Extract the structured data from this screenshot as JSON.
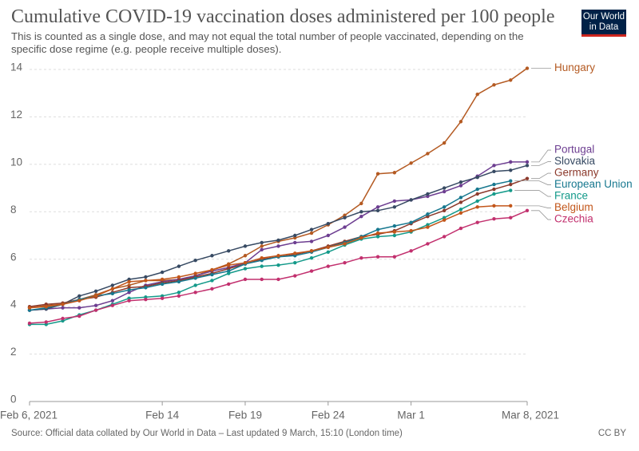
{
  "chart_data": {
    "type": "line",
    "title": "Cumulative COVID-19 vaccination doses administered per 100 people",
    "subtitle": "This is counted as a single dose, and may not equal the total number of people vaccinated, depending on the specific dose regime (e.g. people receive multiple doses).",
    "logo": "Our World in Data",
    "source": "Source: Official data collated by Our World in Data – Last updated 9 March, 15:10 (London time)",
    "license": "CC BY",
    "x": [
      "2021-02-06",
      "2021-02-07",
      "2021-02-08",
      "2021-02-09",
      "2021-02-10",
      "2021-02-11",
      "2021-02-12",
      "2021-02-13",
      "2021-02-14",
      "2021-02-15",
      "2021-02-16",
      "2021-02-17",
      "2021-02-18",
      "2021-02-19",
      "2021-02-20",
      "2021-02-21",
      "2021-02-22",
      "2021-02-23",
      "2021-02-24",
      "2021-02-25",
      "2021-02-26",
      "2021-02-27",
      "2021-02-28",
      "2021-03-01",
      "2021-03-02",
      "2021-03-03",
      "2021-03-04",
      "2021-03-05",
      "2021-03-06",
      "2021-03-07",
      "2021-03-08"
    ],
    "xlim": [
      "2021-02-06",
      "2021-03-08"
    ],
    "xticks": [
      {
        "value": "2021-02-06",
        "label": "Feb 6, 2021"
      },
      {
        "value": "2021-02-14",
        "label": "Feb 14"
      },
      {
        "value": "2021-02-19",
        "label": "Feb 19"
      },
      {
        "value": "2021-02-24",
        "label": "Feb 24"
      },
      {
        "value": "2021-03-01",
        "label": "Mar 1"
      },
      {
        "value": "2021-03-08",
        "label": "Mar 8, 2021"
      }
    ],
    "ylim": [
      0,
      14
    ],
    "yticks": [
      0,
      2,
      4,
      6,
      8,
      10,
      12,
      14
    ],
    "grid": true,
    "series": [
      {
        "name": "Hungary",
        "color": "#b45a22",
        "values": [
          3.95,
          4.05,
          4.1,
          4.3,
          4.5,
          4.75,
          4.9,
          5.1,
          5.1,
          5.15,
          5.3,
          5.55,
          5.8,
          6.15,
          6.55,
          6.75,
          6.9,
          7.1,
          7.45,
          7.85,
          8.35,
          9.6,
          9.65,
          10.05,
          10.45,
          10.9,
          11.8,
          12.95,
          13.35,
          13.55,
          14.05
        ]
      },
      {
        "name": "Portugal",
        "color": "#6d3e91",
        "values": [
          3.85,
          3.9,
          3.95,
          3.95,
          4.05,
          4.25,
          4.6,
          4.9,
          5.05,
          5.15,
          5.3,
          5.5,
          5.65,
          5.85,
          6.4,
          6.55,
          6.7,
          6.75,
          7.0,
          7.35,
          7.8,
          8.2,
          8.45,
          8.5,
          8.65,
          8.85,
          9.1,
          9.5,
          9.95,
          10.1,
          10.1
        ]
      },
      {
        "name": "Slovakia",
        "color": "#374a63",
        "values": [
          3.85,
          3.9,
          4.1,
          4.45,
          4.65,
          4.9,
          5.15,
          5.25,
          5.45,
          5.7,
          5.95,
          6.15,
          6.35,
          6.55,
          6.7,
          6.8,
          7.0,
          7.25,
          7.5,
          7.75,
          8.0,
          8.05,
          8.2,
          8.5,
          8.75,
          9.0,
          9.25,
          9.45,
          9.7,
          9.75,
          9.95
        ]
      },
      {
        "name": "Germany",
        "color": "#8c3a2c",
        "values": [
          4.0,
          4.1,
          4.15,
          4.3,
          4.4,
          4.6,
          4.8,
          4.85,
          5.0,
          5.1,
          5.25,
          5.4,
          5.6,
          5.8,
          6.0,
          6.1,
          6.2,
          6.35,
          6.55,
          6.75,
          6.95,
          7.05,
          7.2,
          7.5,
          7.8,
          8.05,
          8.4,
          8.75,
          8.95,
          9.15,
          9.4
        ]
      },
      {
        "name": "European Union",
        "color": "#17788f",
        "values": [
          3.85,
          3.95,
          4.1,
          4.3,
          4.45,
          4.55,
          4.7,
          4.8,
          4.95,
          5.05,
          5.2,
          5.35,
          5.5,
          5.8,
          5.95,
          6.1,
          6.15,
          6.3,
          6.5,
          6.7,
          6.95,
          7.25,
          7.4,
          7.55,
          7.9,
          8.2,
          8.6,
          8.95,
          9.15,
          9.3,
          null
        ]
      },
      {
        "name": "France",
        "color": "#149a8a",
        "values": [
          3.25,
          3.25,
          3.4,
          3.65,
          3.85,
          4.1,
          4.35,
          4.4,
          4.45,
          4.6,
          4.9,
          5.1,
          5.4,
          5.6,
          5.7,
          5.75,
          5.85,
          6.05,
          6.3,
          6.6,
          6.85,
          6.95,
          7.0,
          7.15,
          7.45,
          7.75,
          8.1,
          8.45,
          8.75,
          8.9,
          null
        ]
      },
      {
        "name": "Belgium",
        "color": "#c2561a",
        "values": [
          3.95,
          4.0,
          4.1,
          4.25,
          4.45,
          4.75,
          5.05,
          5.1,
          5.15,
          5.25,
          5.4,
          5.55,
          5.75,
          5.85,
          6.05,
          6.15,
          6.25,
          6.35,
          6.5,
          6.65,
          6.9,
          7.1,
          7.15,
          7.2,
          7.35,
          7.65,
          7.95,
          8.2,
          8.25,
          8.25,
          null
        ]
      },
      {
        "name": "Czechia",
        "color": "#c2306e",
        "values": [
          3.3,
          3.35,
          3.5,
          3.6,
          3.85,
          4.05,
          4.25,
          4.3,
          4.35,
          4.45,
          4.6,
          4.75,
          4.95,
          5.15,
          5.15,
          5.15,
          5.3,
          5.5,
          5.7,
          5.85,
          6.05,
          6.1,
          6.1,
          6.35,
          6.65,
          6.95,
          7.3,
          7.55,
          7.7,
          7.75,
          8.05
        ]
      }
    ]
  }
}
